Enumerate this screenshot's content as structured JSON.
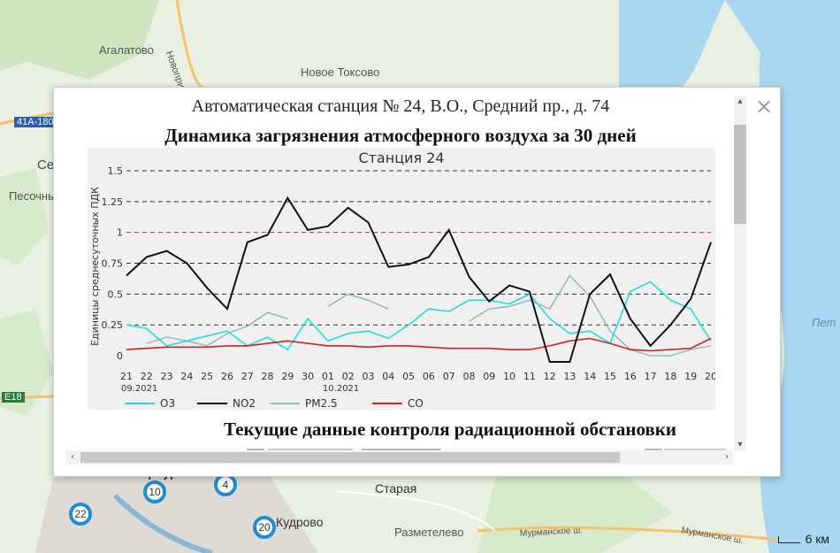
{
  "map": {
    "labels": [
      {
        "text": "Агалатово",
        "key": "agalatovo"
      },
      {
        "text": "Новое Токсово",
        "key": "toksovo"
      },
      {
        "text": "Новоприозерское шоссе",
        "key": "road1"
      },
      {
        "text": "41А-180",
        "key": "road2"
      },
      {
        "text": "Се",
        "key": "se"
      },
      {
        "text": "Песочны",
        "key": "pesochny"
      },
      {
        "text": "Пет",
        "key": "pet"
      },
      {
        "text": "Е18",
        "key": "e18"
      },
      {
        "text": "Старая",
        "key": "staraya"
      },
      {
        "text": "Кудрово",
        "key": "kudrovo"
      },
      {
        "text": "Разметелево",
        "key": "razmetelevo"
      },
      {
        "text": "Мурманское ш.",
        "key": "murmansk1"
      },
      {
        "text": "Мурманское ш.",
        "key": "murmansk2"
      },
      {
        "text": "Санкт-Петербург",
        "key": "spb"
      }
    ],
    "pins": [
      "10",
      "4",
      "22",
      "20"
    ],
    "scale": "6 км"
  },
  "popup": {
    "title": "Автоматическая станция № 24, В.О., Средний пр., д. 74",
    "subtitle": "Динамика загрязнения атмосферного воздуха за 30 дней",
    "radiation_heading": "Текущие данные контроля радиационной обстановки",
    "close_symbol": "×"
  },
  "chart_data": {
    "type": "line",
    "title": "Станция 24",
    "ylabel": "Единицы среднесуточных ПДК",
    "yticks": [
      "1.5",
      "1.25",
      "1",
      "0.75",
      "0.5",
      "0.25",
      "0"
    ],
    "ylim": [
      -0.05,
      1.5
    ],
    "x": [
      "21",
      "22",
      "23",
      "24",
      "25",
      "26",
      "27",
      "28",
      "29",
      "30",
      "01",
      "02",
      "03",
      "04",
      "05",
      "06",
      "07",
      "08",
      "09",
      "10",
      "11",
      "12",
      "13",
      "14",
      "15",
      "16",
      "17",
      "18",
      "19",
      "20"
    ],
    "month_labels": [
      {
        "label": "09.2021",
        "at_index": 0
      },
      {
        "label": "10.2021",
        "at_index": 10
      }
    ],
    "limit_line": 1.0,
    "series": [
      {
        "name": "O3",
        "color": "#22dddd",
        "values": [
          0.25,
          0.22,
          0.08,
          0.12,
          0.16,
          0.2,
          0.08,
          0.15,
          0.05,
          0.3,
          0.12,
          0.18,
          0.2,
          0.14,
          0.25,
          0.38,
          0.36,
          0.45,
          0.45,
          0.42,
          0.5,
          0.3,
          0.18,
          0.2,
          0.1,
          0.52,
          0.6,
          0.45,
          0.38,
          0.12
        ]
      },
      {
        "name": "NO2",
        "color": "#111111",
        "values": [
          0.65,
          0.8,
          0.85,
          0.75,
          0.55,
          0.38,
          0.92,
          0.98,
          1.28,
          1.02,
          1.05,
          1.2,
          1.08,
          0.72,
          0.74,
          0.8,
          1.02,
          0.64,
          0.44,
          0.57,
          0.52,
          -0.05,
          -0.05,
          0.5,
          0.66,
          0.3,
          0.08,
          0.25,
          0.46,
          0.92
        ]
      },
      {
        "name": "PM2.5",
        "color": "#99bbbb",
        "values": [
          null,
          0.1,
          0.15,
          0.12,
          0.08,
          0.18,
          0.24,
          0.35,
          0.3,
          null,
          0.4,
          0.5,
          0.45,
          0.38,
          null,
          null,
          null,
          0.28,
          0.38,
          0.4,
          0.45,
          0.38,
          0.65,
          0.48,
          0.2,
          0.05,
          0.0,
          0.0,
          0.05,
          0.08
        ]
      },
      {
        "name": "CO",
        "color": "#cc2222",
        "values": [
          0.05,
          0.06,
          0.07,
          0.07,
          0.07,
          0.08,
          0.08,
          0.1,
          0.12,
          0.1,
          0.08,
          0.08,
          0.07,
          0.08,
          0.08,
          0.07,
          0.06,
          0.06,
          0.06,
          0.05,
          0.05,
          0.08,
          0.12,
          0.14,
          0.1,
          0.05,
          0.04,
          0.05,
          0.06,
          0.14
        ]
      }
    ],
    "legend_position": "bottom",
    "grid": "horizontal dashed"
  }
}
